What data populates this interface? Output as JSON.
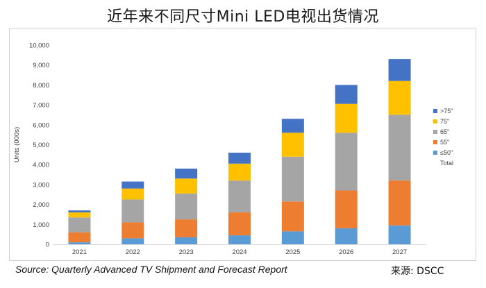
{
  "title": "近年来不同尺寸Mini LED电视出货情况",
  "source": "Source: Quarterly Advanced TV Shipment and Forecast Report",
  "credit": "来源: DSCC",
  "chart_data": {
    "type": "bar",
    "stacked": true,
    "categories": [
      "2021",
      "2022",
      "2023",
      "2024",
      "2025",
      "2026",
      "2027"
    ],
    "ylabel": "Units (000s)",
    "xlabel": "",
    "ylim": [
      0,
      10000
    ],
    "yticks": [
      0,
      1000,
      2000,
      3000,
      4000,
      5000,
      6000,
      7000,
      8000,
      9000,
      10000
    ],
    "ytick_labels": [
      "0",
      "1,000",
      "2,000",
      "3,000",
      "4,000",
      "5,000",
      "6,000",
      "7,000",
      "8,000",
      "9,000",
      "10,000"
    ],
    "series": [
      {
        "name": "≤50\"",
        "color": "#5B9BD5",
        "values": [
          100,
          300,
          350,
          450,
          650,
          800,
          950
        ]
      },
      {
        "name": "55\"",
        "color": "#ED7D31",
        "values": [
          500,
          800,
          900,
          1150,
          1500,
          1900,
          2250
        ]
      },
      {
        "name": "65\"",
        "color": "#A5A5A5",
        "values": [
          750,
          1150,
          1300,
          1600,
          2250,
          2900,
          3300
        ]
      },
      {
        "name": "75\"",
        "color": "#FFC000",
        "values": [
          250,
          550,
          750,
          850,
          1200,
          1450,
          1700
        ]
      },
      {
        "name": ">75\"",
        "color": "#4472C4",
        "values": [
          100,
          350,
          500,
          550,
          700,
          950,
          1100
        ]
      }
    ],
    "totals": [
      1700,
      3150,
      3800,
      4600,
      6300,
      8000,
      9300
    ],
    "legend_order": [
      ">75\"",
      "75\"",
      "65\"",
      "55\"",
      "≤50\"",
      "Total"
    ],
    "legend_position": "right",
    "grid": false
  }
}
